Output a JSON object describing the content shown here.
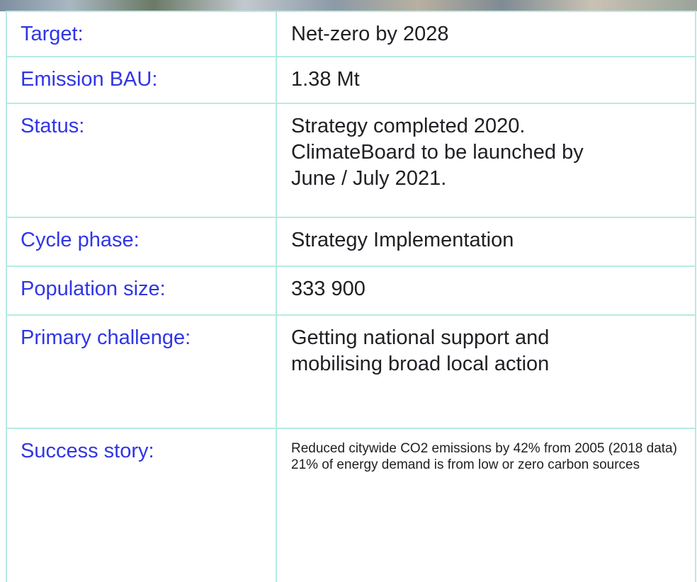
{
  "table": {
    "rows": [
      {
        "label": "Target:",
        "value": [
          "Net-zero by 2028"
        ]
      },
      {
        "label": "Emission BAU:",
        "value": [
          "1.38 Mt"
        ]
      },
      {
        "label": "Status:",
        "value": [
          "Strategy completed 2020.",
          "ClimateBoard to be launched by",
          "June / July 2021."
        ]
      },
      {
        "label": "Cycle phase:",
        "value": [
          "Strategy Implementation"
        ]
      },
      {
        "label": "Population size:",
        "value": [
          "333 900"
        ]
      },
      {
        "label": "Primary challenge:",
        "value": [
          "Getting national support and",
          "mobilising broad local action"
        ]
      },
      {
        "label": "Success story:",
        "value": [
          "Reduced citywide CO2 emissions by 42% from 2005 (2018 data)",
          "21% of energy demand is from low or zero carbon sources"
        ]
      }
    ]
  }
}
